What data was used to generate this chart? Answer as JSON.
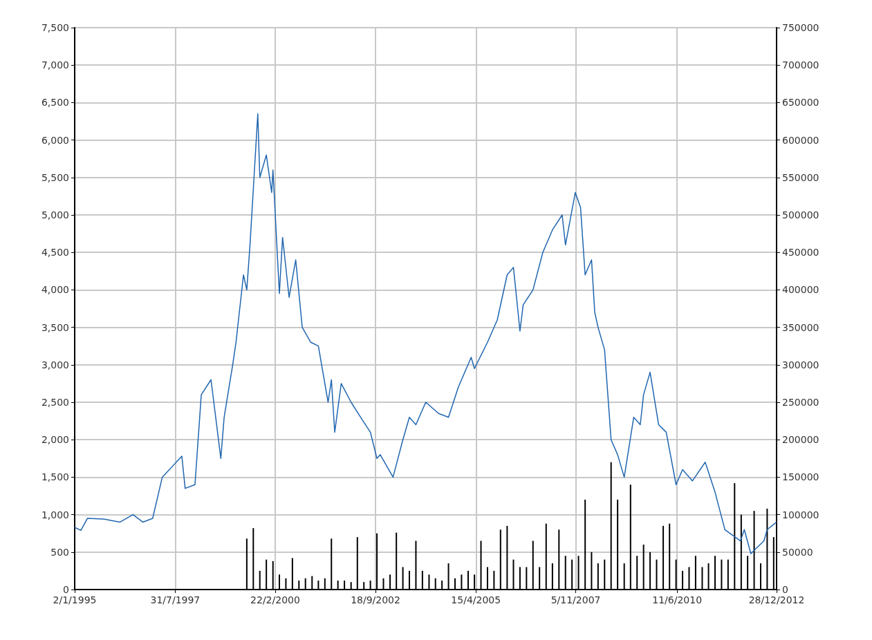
{
  "chart_data": {
    "type": "line",
    "xlim": [
      "1995-01-02",
      "2012-12-28"
    ],
    "xticks": [
      {
        "value": "1995-01-02",
        "label": "2/1/1995"
      },
      {
        "value": "1997-07-31",
        "label": "31/7/1997"
      },
      {
        "value": "2000-02-22",
        "label": "22/2/2000"
      },
      {
        "value": "2002-09-18",
        "label": "18/9/2002"
      },
      {
        "value": "2005-04-15",
        "label": "15/4/2005"
      },
      {
        "value": "2007-11-05",
        "label": "5/11/2007"
      },
      {
        "value": "2010-06-11",
        "label": "11/6/2010"
      },
      {
        "value": "2012-12-28",
        "label": "28/12/2012"
      }
    ],
    "ylim": [
      0,
      7500
    ],
    "yticks": [
      {
        "value": 0,
        "label": "0"
      },
      {
        "value": 500,
        "label": "500"
      },
      {
        "value": 1000,
        "label": "1,000"
      },
      {
        "value": 1500,
        "label": "1,500"
      },
      {
        "value": 2000,
        "label": "2,000"
      },
      {
        "value": 2500,
        "label": "2,500"
      },
      {
        "value": 3000,
        "label": "3,000"
      },
      {
        "value": 3500,
        "label": "3,500"
      },
      {
        "value": 4000,
        "label": "4,000"
      },
      {
        "value": 4500,
        "label": "4,500"
      },
      {
        "value": 5000,
        "label": "5,000"
      },
      {
        "value": 5500,
        "label": "5,500"
      },
      {
        "value": 6000,
        "label": "6,000"
      },
      {
        "value": 6500,
        "label": "6,500"
      },
      {
        "value": 7000,
        "label": "7,000"
      },
      {
        "value": 7500,
        "label": "7,500"
      }
    ],
    "y2lim": [
      0,
      750000
    ],
    "y2ticks": [
      0,
      50000,
      100000,
      150000,
      200000,
      250000,
      300000,
      350000,
      400000,
      450000,
      500000,
      550000,
      600000,
      650000,
      700000,
      750000
    ],
    "grid": true,
    "marker": "none",
    "line_style": "solid",
    "series": [
      {
        "type": "bar",
        "axis": "y2",
        "color": "#000000",
        "x": [
          "1999-06",
          "1999-08",
          "1999-10",
          "1999-12",
          "2000-02",
          "2000-04",
          "2000-06",
          "2000-08",
          "2000-10",
          "2000-12",
          "2001-02",
          "2001-04",
          "2001-06",
          "2001-08",
          "2001-10",
          "2001-12",
          "2002-02",
          "2002-04",
          "2002-06",
          "2002-08",
          "2002-10",
          "2002-12",
          "2003-02",
          "2003-04",
          "2003-06",
          "2003-08",
          "2003-10",
          "2003-12",
          "2004-02",
          "2004-04",
          "2004-06",
          "2004-08",
          "2004-10",
          "2004-12",
          "2005-02",
          "2005-04",
          "2005-06",
          "2005-08",
          "2005-10",
          "2005-12",
          "2006-02",
          "2006-04",
          "2006-06",
          "2006-08",
          "2006-10",
          "2006-12",
          "2007-02",
          "2007-04",
          "2007-06",
          "2007-08",
          "2007-10",
          "2007-12",
          "2008-02",
          "2008-04",
          "2008-06",
          "2008-08",
          "2008-10",
          "2008-12",
          "2009-02",
          "2009-04",
          "2009-06",
          "2009-08",
          "2009-10",
          "2009-12",
          "2010-02",
          "2010-04",
          "2010-06",
          "2010-08",
          "2010-10",
          "2010-12",
          "2011-02",
          "2011-04",
          "2011-06",
          "2011-08",
          "2011-10",
          "2011-12",
          "2012-02",
          "2012-04",
          "2012-06",
          "2012-08",
          "2012-10",
          "2012-12"
        ],
        "values": [
          68000,
          82000,
          25000,
          40000,
          38000,
          20000,
          15000,
          42000,
          12000,
          15000,
          18000,
          12000,
          15000,
          68000,
          12000,
          12000,
          10000,
          70000,
          10000,
          12000,
          75000,
          15000,
          20000,
          76000,
          30000,
          25000,
          65000,
          25000,
          20000,
          15000,
          12000,
          35000,
          15000,
          20000,
          25000,
          20000,
          65000,
          30000,
          25000,
          80000,
          85000,
          40000,
          30000,
          30000,
          65000,
          30000,
          88000,
          35000,
          80000,
          45000,
          40000,
          45000,
          120000,
          50000,
          35000,
          40000,
          170000,
          120000,
          35000,
          140000,
          45000,
          60000,
          50000,
          40000,
          85000,
          88000,
          40000,
          25000,
          30000,
          45000,
          30000,
          35000,
          45000,
          40000,
          40000,
          142000,
          100000,
          45000,
          105000,
          35000,
          108000,
          70000
        ]
      },
      {
        "axis": "y",
        "color": "#2066b0",
        "x": [
          "1995-01-02",
          "1995-03",
          "1995-05",
          "1995-10",
          "1996-03",
          "1996-07",
          "1996-10",
          "1997-01",
          "1997-04",
          "1997-10",
          "1997-11",
          "1998-02",
          "1998-04",
          "1998-07",
          "1998-10",
          "1998-11",
          "1999-01-20",
          "1999-02-20",
          "1999-05",
          "1999-06",
          "1999-07",
          "1999-09-12",
          "1999-10-01",
          "1999-12",
          "2000-01-20",
          "2000-02-01",
          "2000-03",
          "2000-04",
          "2000-05",
          "2000-07",
          "2000-09",
          "2000-11",
          "2001-01-20",
          "2001-04",
          "2001-07",
          "2001-08",
          "2001-09",
          "2001-11",
          "2002-02",
          "2002-05",
          "2002-08",
          "2002-10",
          "2002-11",
          "2003-03",
          "2003-06",
          "2003-08",
          "2003-10",
          "2004-01",
          "2004-05",
          "2004-08",
          "2004-11",
          "2005-03",
          "2005-04",
          "2005-08",
          "2005-11",
          "2006-02",
          "2006-04",
          "2006-06",
          "2006-07",
          "2006-10",
          "2007-01",
          "2007-04",
          "2007-07",
          "2007-08",
          "2007-11",
          "2007-12-20",
          "2008-02",
          "2008-04",
          "2008-05",
          "2008-06",
          "2008-08",
          "2008-10",
          "2008-12",
          "2009-02",
          "2009-05",
          "2009-07",
          "2009-08",
          "2009-10",
          "2009-12-20",
          "2010-03",
          "2010-06",
          "2010-08",
          "2010-11",
          "2011-03",
          "2011-06",
          "2011-09",
          "2012-01-25",
          "2012-03",
          "2012-05",
          "2012-09",
          "2012-10",
          "2012-12-28"
        ],
        "values": [
          830,
          790,
          950,
          940,
          900,
          1000,
          900,
          950,
          1500,
          1780,
          1350,
          1400,
          2600,
          2800,
          1750,
          2300,
          3000,
          3300,
          4200,
          4000,
          4600,
          6350,
          5500,
          5800,
          5300,
          5600,
          4800,
          3950,
          4700,
          3900,
          4400,
          3500,
          3300,
          3250,
          2500,
          2800,
          2100,
          2750,
          2500,
          2300,
          2100,
          1750,
          1800,
          1500,
          2000,
          2300,
          2200,
          2500,
          2350,
          2300,
          2700,
          3100,
          2950,
          3300,
          3600,
          4200,
          4300,
          3450,
          3800,
          4000,
          4500,
          4800,
          5000,
          4600,
          5300,
          5100,
          4200,
          4400,
          3700,
          3500,
          3200,
          2000,
          1800,
          1500,
          2300,
          2200,
          2600,
          2900,
          2200,
          2100,
          1400,
          1600,
          1450,
          1700,
          1300,
          800,
          650,
          800,
          480,
          650,
          800,
          900
        ]
      }
    ]
  }
}
